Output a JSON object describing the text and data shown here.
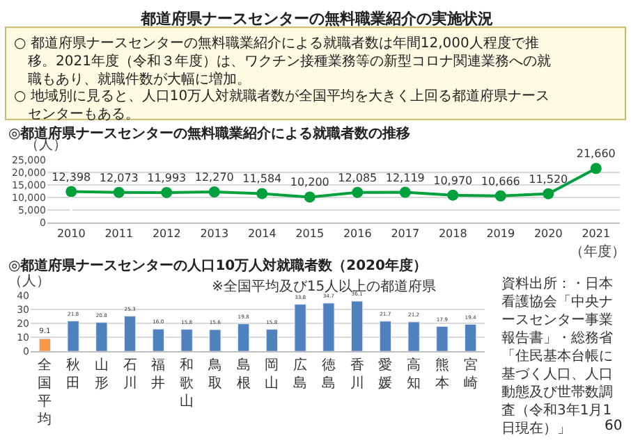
{
  "chart_data": [
    {
      "type": "other",
      "title": "都道府県ナースセンターの無料職業紹介の実施状況",
      "annotations": [
        "○ 都道府県ナースセンターの無料職業紹介による就職者数は年間12,000人程度で推移。2021年度（令和３年度）は、ワクチン接種業務等の新型コロナ関連業務への就職もあり、就職件数が大幅に増加。",
        "○ 地域別に見ると、人口10万人対就職者数が全国平均を大きく上回る都道府県ナースセンターもある。"
      ]
    },
    {
      "type": "line",
      "title": "◎都道府県ナースセンターの無料職業紹介による就職者数の推移",
      "ylabel": "（人）",
      "xlabel": "（年度）",
      "categories": [
        "2010",
        "2011",
        "2012",
        "2013",
        "2014",
        "2015",
        "2016",
        "2017",
        "2018",
        "2019",
        "2020",
        "2021"
      ],
      "series": [
        {
          "color": "#00a03c",
          "values": [
            12398,
            12073,
            11993,
            12270,
            11584,
            10200,
            12085,
            12119,
            10970,
            10666,
            11520,
            21660
          ]
        }
      ],
      "ylim": [
        0,
        25000
      ],
      "yticks": [
        0,
        {
          "value": 5000,
          "label": "5,000"
        },
        {
          "value": 10000,
          "label": "10,000"
        },
        {
          "value": 15000,
          "label": "15,000"
        },
        {
          "value": 20000,
          "label": "20,000"
        },
        {
          "value": 25000,
          "label": "25,000"
        }
      ],
      "value_labels": [
        "12,398",
        "12,073",
        "11,993",
        "12,270",
        "11,584",
        "10,200",
        "12,085",
        "12,119",
        "10,970",
        "10,666",
        "11,520",
        "21,660"
      ],
      "grid": "y",
      "marker": "circle",
      "line_style": "solid"
    },
    {
      "type": "bar",
      "title": "◎都道府県ナースセンターの人口10万人対就職者数（2020年度）",
      "subtitle": "※全国平均及び15人以上の都道府県",
      "ylabel": "（人）",
      "categories": [
        "全国平均",
        "秋田",
        "山形",
        "石川",
        "福井",
        "和歌山",
        "鳥取",
        "島根",
        "岡山",
        "広島",
        "徳島",
        "香川",
        "愛媛",
        "高知",
        "熊本",
        "宮崎"
      ],
      "values": [
        9.1,
        21.8,
        20.8,
        25.3,
        16.0,
        15.8,
        15.6,
        19.8,
        15.8,
        33.8,
        34.7,
        36.1,
        21.7,
        21.2,
        17.9,
        19.4
      ],
      "colors": [
        "#f79646",
        "#4f81bd",
        "#4f81bd",
        "#4f81bd",
        "#4f81bd",
        "#4f81bd",
        "#4f81bd",
        "#4f81bd",
        "#4f81bd",
        "#4f81bd",
        "#4f81bd",
        "#4f81bd",
        "#4f81bd",
        "#4f81bd",
        "#4f81bd",
        "#4f81bd"
      ],
      "value_labels": [
        "9.1",
        "21.8",
        "20.8",
        "25.3",
        "16.0",
        "15.8",
        "15.6",
        "19.8",
        "15.8",
        "33.8",
        "34.7",
        "36.1",
        "21.7",
        "21.2",
        "17.9",
        "19.4"
      ],
      "ylim": [
        0,
        40
      ],
      "yticks": [
        0,
        10,
        20,
        30,
        40
      ],
      "grid": "y",
      "annotations": [
        "資料出所：・日本看護協会「中央ナースセンター事業報告書」・総務省「住民基本台帳に基づく人口、人口動態及び世帯数調査（令和3年1月1日現在）」",
        "60"
      ]
    }
  ]
}
